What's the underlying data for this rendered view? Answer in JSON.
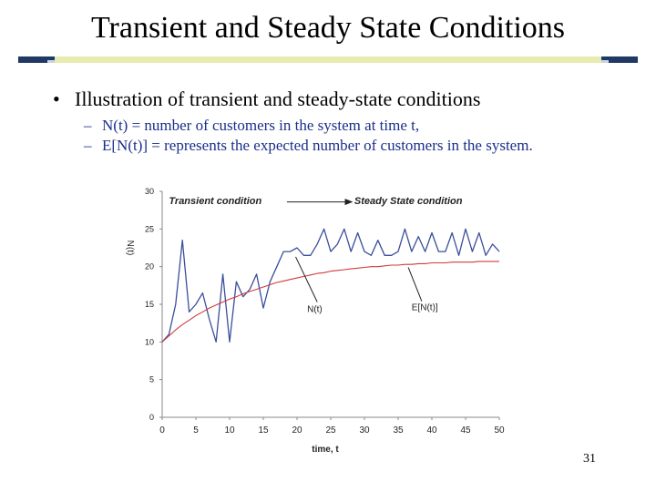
{
  "slide": {
    "title": "Transient and Steady State Conditions",
    "bullet": "Illustration of transient and steady-state conditions",
    "sub_items": [
      "N(t) = number of customers in the system at time t,",
      "E[N(t)] = represents the expected number of customers in the system."
    ],
    "page_number": "31"
  },
  "colors": {
    "title_rule": "#1f3864",
    "sub_text": "#1a2f8a",
    "n_series": "#3a4f9a",
    "e_series": "#d13b3b"
  },
  "chart_data": {
    "type": "line",
    "xlabel": "time, t",
    "ylabel": "N(t)",
    "xlim": [
      0,
      50
    ],
    "ylim": [
      0,
      30
    ],
    "x_ticks": [
      "0",
      "5",
      "10",
      "15",
      "20",
      "25",
      "30",
      "35",
      "40",
      "45",
      "50"
    ],
    "y_ticks": [
      "0",
      "5",
      "10",
      "15",
      "20",
      "25",
      "30"
    ],
    "grid": false,
    "annotations": [
      {
        "text": "Transient condition",
        "x": 1,
        "y": 28.3
      },
      {
        "text": "Steady State condition",
        "x": 28.5,
        "y": 28.3
      },
      {
        "text": "N(t)",
        "x": 21.5,
        "y": 14
      },
      {
        "text": "E[N(t)]",
        "x": 37,
        "y": 14.2
      }
    ],
    "series": [
      {
        "name": "N(t)",
        "x": [
          0,
          1,
          2,
          3,
          4,
          5,
          6,
          7,
          8,
          9,
          10,
          11,
          12,
          13,
          14,
          15,
          16,
          17,
          18,
          19,
          20,
          21,
          22,
          23,
          24,
          25,
          26,
          27,
          28,
          29,
          30,
          31,
          32,
          33,
          34,
          35,
          36,
          37,
          38,
          39,
          40,
          41,
          42,
          43,
          44,
          45,
          46,
          47,
          48,
          49,
          50
        ],
        "values": [
          10,
          11,
          15,
          23.5,
          14,
          15,
          16.5,
          13,
          10,
          19,
          10,
          18,
          16,
          17,
          19,
          14.5,
          18,
          20,
          22,
          22,
          22.5,
          21.5,
          21.5,
          23,
          25,
          22,
          23,
          25,
          22,
          24.5,
          22,
          21.5,
          23.5,
          21.5,
          21.5,
          22,
          25,
          22,
          24,
          22,
          24.5,
          22,
          22,
          24.5,
          21.5,
          25,
          22,
          24.5,
          21.5,
          23,
          22
        ]
      },
      {
        "name": "E[N(t)]",
        "x": [
          0,
          1,
          2,
          3,
          4,
          5,
          6,
          7,
          8,
          9,
          10,
          11,
          12,
          13,
          14,
          15,
          16,
          17,
          18,
          19,
          20,
          21,
          22,
          23,
          24,
          25,
          26,
          27,
          28,
          29,
          30,
          31,
          32,
          33,
          34,
          35,
          36,
          37,
          38,
          39,
          40,
          41,
          42,
          43,
          44,
          45,
          46,
          47,
          48,
          49,
          50
        ],
        "values": [
          10,
          10.8,
          11.6,
          12.3,
          12.9,
          13.5,
          14,
          14.5,
          14.9,
          15.3,
          15.7,
          16,
          16.4,
          16.7,
          17,
          17.3,
          17.6,
          17.9,
          18.1,
          18.3,
          18.5,
          18.7,
          18.9,
          19.1,
          19.2,
          19.4,
          19.5,
          19.6,
          19.7,
          19.8,
          19.9,
          20,
          20,
          20.1,
          20.2,
          20.2,
          20.3,
          20.3,
          20.4,
          20.4,
          20.5,
          20.5,
          20.5,
          20.6,
          20.6,
          20.6,
          20.6,
          20.7,
          20.7,
          20.7,
          20.7
        ]
      }
    ]
  }
}
